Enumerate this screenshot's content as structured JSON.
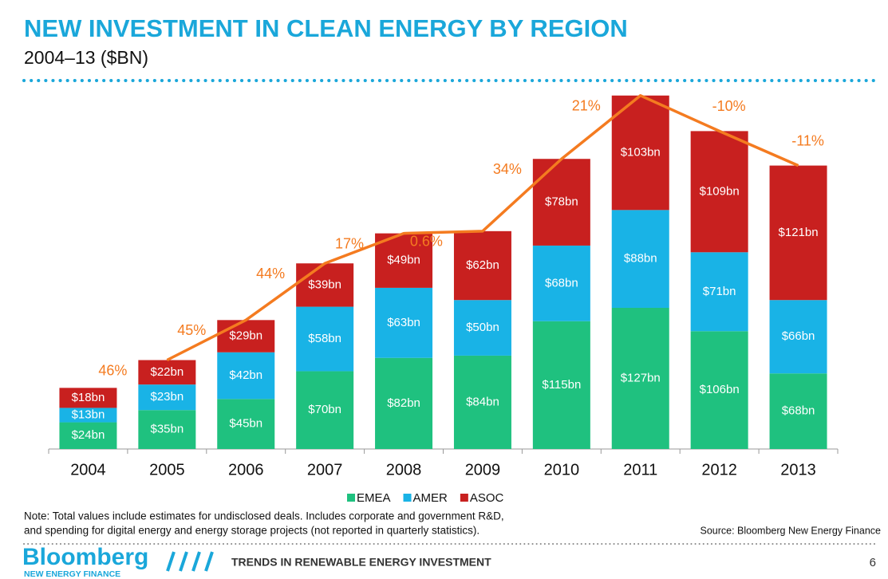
{
  "chart_data": {
    "type": "stacked_bar",
    "title": "NEW INVESTMENT IN CLEAN ENERGY BY REGION",
    "subtitle": "2004–13 ($BN)",
    "categories": [
      "2004",
      "2005",
      "2006",
      "2007",
      "2008",
      "2009",
      "2010",
      "2011",
      "2012",
      "2013"
    ],
    "series": [
      {
        "name": "EMEA",
        "color": "#1fc17f",
        "values": [
          24,
          35,
          45,
          70,
          82,
          84,
          115,
          127,
          106,
          68
        ],
        "value_labels": [
          "$24bn",
          "$35bn",
          "$45bn",
          "$70bn",
          "$82bn",
          "$84bn",
          "$115bn",
          "$127bn",
          "$106bn",
          "$68bn"
        ]
      },
      {
        "name": "AMER",
        "color": "#19b3e6",
        "values": [
          13,
          23,
          42,
          58,
          63,
          50,
          68,
          88,
          71,
          66
        ],
        "value_labels": [
          "$13bn",
          "$23bn",
          "$42bn",
          "$58bn",
          "$63bn",
          "$50bn",
          "$68bn",
          "$88bn",
          "$71bn",
          "$66bn"
        ]
      },
      {
        "name": "ASOC",
        "color": "#c8201f",
        "values": [
          18,
          22,
          29,
          39,
          49,
          62,
          78,
          103,
          109,
          121
        ],
        "value_labels": [
          "$18bn",
          "$22bn",
          "$29bn",
          "$39bn",
          "$49bn",
          "$62bn",
          "$78bn",
          "$103bn",
          "$109bn",
          "$121bn"
        ]
      }
    ],
    "growth": {
      "color": "#f47b20",
      "values": [
        46,
        45,
        44,
        17,
        0.6,
        34,
        21,
        -10,
        -11
      ],
      "value_labels": [
        "46%",
        "45%",
        "44%",
        "17%",
        "0.6%",
        "34%",
        "21%",
        "-10%",
        "-11%"
      ]
    },
    "ylim": [
      0,
      320
    ],
    "note": [
      "Note: Total values include estimates for undisclosed deals. Includes corporate and government R&D,",
      "and spending for digital energy and energy storage projects (not reported in quarterly statistics)."
    ],
    "source": "Source: Bloomberg New Energy Finance",
    "footer": {
      "brand": "Bloomberg",
      "brand_sub": "NEW ENERGY FINANCE",
      "tagline": "TRENDS IN RENEWABLE ENERGY INVESTMENT",
      "page": "6"
    }
  }
}
